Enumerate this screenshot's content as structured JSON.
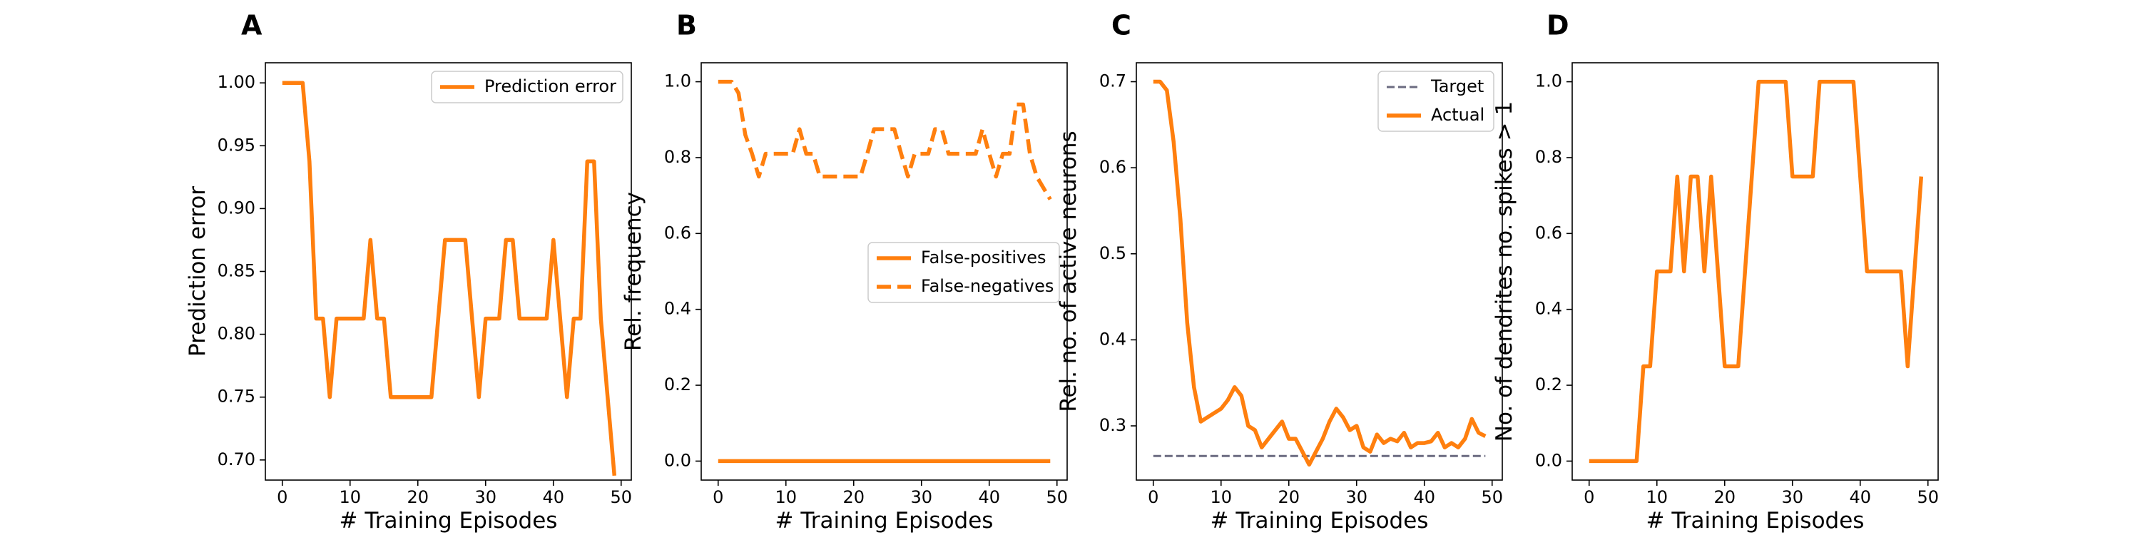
{
  "colors": {
    "series": "#ff7f0e",
    "target": "#6b6b80",
    "axis": "#000000",
    "legend_border": "#cccccc"
  },
  "chart_data": [
    {
      "type": "line",
      "panel": "A",
      "xlabel": "# Training Episodes",
      "ylabel": "Prediction error",
      "xlim": [
        -2.5,
        51.5
      ],
      "ylim": [
        0.684,
        1.016
      ],
      "xticks": [
        0,
        10,
        20,
        30,
        40,
        50
      ],
      "yticks": [
        0.7,
        0.75,
        0.8,
        0.85,
        0.9,
        0.95,
        1.0
      ],
      "ytick_labels": [
        "0.70",
        "0.75",
        "0.80",
        "0.85",
        "0.90",
        "0.95",
        "1.00"
      ],
      "grid": false,
      "legend": "upper-right",
      "series": [
        {
          "name": "Prediction error",
          "style": "solid",
          "x": [
            0,
            1,
            2,
            3,
            4,
            5,
            6,
            7,
            8,
            9,
            10,
            11,
            12,
            13,
            14,
            15,
            16,
            17,
            18,
            19,
            20,
            21,
            22,
            23,
            24,
            25,
            26,
            27,
            28,
            29,
            30,
            31,
            32,
            33,
            34,
            35,
            36,
            37,
            38,
            39,
            40,
            41,
            42,
            43,
            44,
            45,
            46,
            47,
            48,
            49
          ],
          "y": [
            1.0,
            1.0,
            1.0,
            1.0,
            0.9375,
            0.8125,
            0.8125,
            0.75,
            0.8125,
            0.8125,
            0.8125,
            0.8125,
            0.8125,
            0.875,
            0.8125,
            0.8125,
            0.75,
            0.75,
            0.75,
            0.75,
            0.75,
            0.75,
            0.75,
            0.8125,
            0.875,
            0.875,
            0.875,
            0.875,
            0.8125,
            0.75,
            0.8125,
            0.8125,
            0.8125,
            0.875,
            0.875,
            0.8125,
            0.8125,
            0.8125,
            0.8125,
            0.8125,
            0.875,
            0.8125,
            0.75,
            0.8125,
            0.8125,
            0.9375,
            0.9375,
            0.8125,
            0.75,
            0.6875
          ]
        }
      ]
    },
    {
      "type": "line",
      "panel": "B",
      "xlabel": "# Training Episodes",
      "ylabel": "Rel. frequency",
      "xlim": [
        -2.5,
        51.5
      ],
      "ylim": [
        -0.05,
        1.05
      ],
      "xticks": [
        0,
        10,
        20,
        30,
        40,
        50
      ],
      "yticks": [
        0.0,
        0.2,
        0.4,
        0.6,
        0.8,
        1.0
      ],
      "ytick_labels": [
        "0.0",
        "0.2",
        "0.4",
        "0.6",
        "0.8",
        "1.0"
      ],
      "grid": false,
      "legend": "center-right",
      "series": [
        {
          "name": "False-positives",
          "style": "solid",
          "x": [
            0,
            49
          ],
          "y": [
            0.0,
            0.0
          ]
        },
        {
          "name": "False-negatives",
          "style": "dashed",
          "x": [
            0,
            1,
            2,
            3,
            4,
            5,
            6,
            7,
            8,
            9,
            10,
            11,
            12,
            13,
            14,
            15,
            16,
            17,
            18,
            19,
            20,
            21,
            22,
            23,
            24,
            25,
            26,
            27,
            28,
            29,
            30,
            31,
            32,
            33,
            34,
            35,
            36,
            37,
            38,
            39,
            40,
            41,
            42,
            43,
            44,
            45,
            46,
            47,
            48,
            49
          ],
          "y": [
            1.0,
            1.0,
            1.0,
            0.97,
            0.86,
            0.81,
            0.75,
            0.81,
            0.81,
            0.81,
            0.81,
            0.81,
            0.875,
            0.81,
            0.81,
            0.75,
            0.75,
            0.75,
            0.75,
            0.75,
            0.75,
            0.75,
            0.81,
            0.875,
            0.875,
            0.875,
            0.875,
            0.81,
            0.75,
            0.81,
            0.81,
            0.81,
            0.875,
            0.875,
            0.81,
            0.81,
            0.81,
            0.81,
            0.81,
            0.875,
            0.81,
            0.75,
            0.81,
            0.81,
            0.94,
            0.94,
            0.81,
            0.75,
            0.72,
            0.69
          ]
        }
      ]
    },
    {
      "type": "line",
      "panel": "C",
      "xlabel": "# Training Episodes",
      "ylabel": "Rel. no. of active neurons",
      "xlim": [
        -2.5,
        51.5
      ],
      "ylim": [
        0.237,
        0.722
      ],
      "xticks": [
        0,
        10,
        20,
        30,
        40,
        50
      ],
      "yticks": [
        0.3,
        0.4,
        0.5,
        0.6,
        0.7
      ],
      "ytick_labels": [
        "0.3",
        "0.4",
        "0.5",
        "0.6",
        "0.7"
      ],
      "grid": false,
      "legend": "upper-right",
      "series": [
        {
          "name": "Target",
          "style": "dashed",
          "x": [
            0,
            49
          ],
          "y": [
            0.265,
            0.265
          ]
        },
        {
          "name": "Actual",
          "style": "solid",
          "x": [
            0,
            1,
            2,
            3,
            4,
            5,
            6,
            7,
            8,
            9,
            10,
            11,
            12,
            13,
            14,
            15,
            16,
            17,
            18,
            19,
            20,
            21,
            22,
            23,
            24,
            25,
            26,
            27,
            28,
            29,
            30,
            31,
            32,
            33,
            34,
            35,
            36,
            37,
            38,
            39,
            40,
            41,
            42,
            43,
            44,
            45,
            46,
            47,
            48,
            49
          ],
          "y": [
            0.7,
            0.7,
            0.69,
            0.63,
            0.54,
            0.42,
            0.345,
            0.305,
            0.31,
            0.315,
            0.32,
            0.33,
            0.345,
            0.335,
            0.3,
            0.295,
            0.275,
            0.285,
            0.295,
            0.305,
            0.285,
            0.285,
            0.27,
            0.255,
            0.27,
            0.285,
            0.305,
            0.32,
            0.31,
            0.295,
            0.3,
            0.275,
            0.27,
            0.29,
            0.28,
            0.285,
            0.282,
            0.292,
            0.275,
            0.28,
            0.28,
            0.282,
            0.292,
            0.275,
            0.28,
            0.275,
            0.285,
            0.308,
            0.292,
            0.288
          ]
        }
      ]
    },
    {
      "type": "line",
      "panel": "D",
      "xlabel": "# Training Episodes",
      "ylabel": "No. of dendrites no. spikes > 1",
      "xlim": [
        -2.5,
        51.5
      ],
      "ylim": [
        -0.05,
        1.05
      ],
      "xticks": [
        0,
        10,
        20,
        30,
        40,
        50
      ],
      "yticks": [
        0.0,
        0.2,
        0.4,
        0.6,
        0.8,
        1.0
      ],
      "ytick_labels": [
        "0.0",
        "0.2",
        "0.4",
        "0.6",
        "0.8",
        "1.0"
      ],
      "grid": false,
      "legend": "none",
      "series": [
        {
          "style": "solid",
          "x": [
            0,
            1,
            2,
            3,
            4,
            5,
            6,
            7,
            8,
            9,
            10,
            11,
            12,
            13,
            14,
            15,
            16,
            17,
            18,
            19,
            20,
            21,
            22,
            23,
            24,
            25,
            26,
            27,
            28,
            29,
            30,
            31,
            32,
            33,
            34,
            35,
            36,
            37,
            38,
            39,
            40,
            41,
            42,
            43,
            44,
            45,
            46,
            47,
            48,
            49
          ],
          "y": [
            0,
            0,
            0,
            0,
            0,
            0,
            0,
            0,
            0.25,
            0.25,
            0.5,
            0.5,
            0.5,
            0.75,
            0.5,
            0.75,
            0.75,
            0.5,
            0.75,
            0.5,
            0.25,
            0.25,
            0.25,
            0.5,
            0.75,
            1.0,
            1.0,
            1.0,
            1.0,
            1.0,
            0.75,
            0.75,
            0.75,
            0.75,
            1.0,
            1.0,
            1.0,
            1.0,
            1.0,
            1.0,
            0.75,
            0.5,
            0.5,
            0.5,
            0.5,
            0.5,
            0.5,
            0.25,
            0.5,
            0.75
          ]
        }
      ]
    }
  ]
}
